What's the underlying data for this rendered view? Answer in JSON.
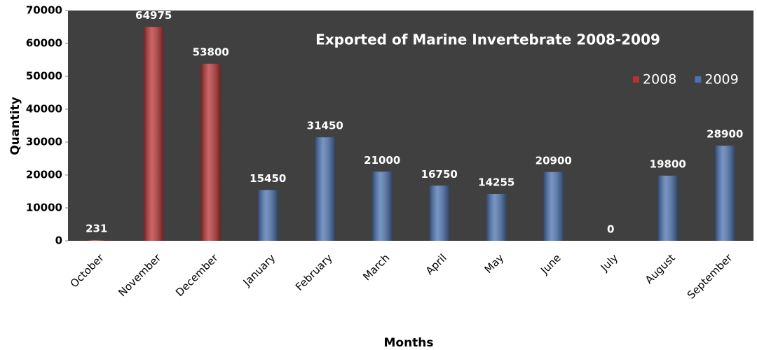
{
  "chart_data": {
    "type": "bar",
    "title": "Exported of Marine Invertebrate  2008-2009",
    "x_label": "Months",
    "y_label": "Quantity",
    "categories": [
      "October",
      "November",
      "December",
      "January",
      "February",
      "March",
      "April",
      "May",
      "June",
      "July",
      "August",
      "September"
    ],
    "series": [
      {
        "name": "2008",
        "color": "#b83232",
        "values": [
          231,
          64975,
          53800,
          null,
          null,
          null,
          null,
          null,
          null,
          null,
          null,
          null
        ]
      },
      {
        "name": "2009",
        "color": "#4a72b0",
        "values": [
          null,
          null,
          null,
          15450,
          31450,
          21000,
          16750,
          14255,
          20900,
          0,
          19800,
          28900
        ]
      }
    ],
    "ylim": [
      0,
      70000
    ],
    "yticks": [
      0,
      10000,
      20000,
      30000,
      40000,
      50000,
      60000,
      70000
    ],
    "legend": "top-right",
    "background": "#404040"
  }
}
